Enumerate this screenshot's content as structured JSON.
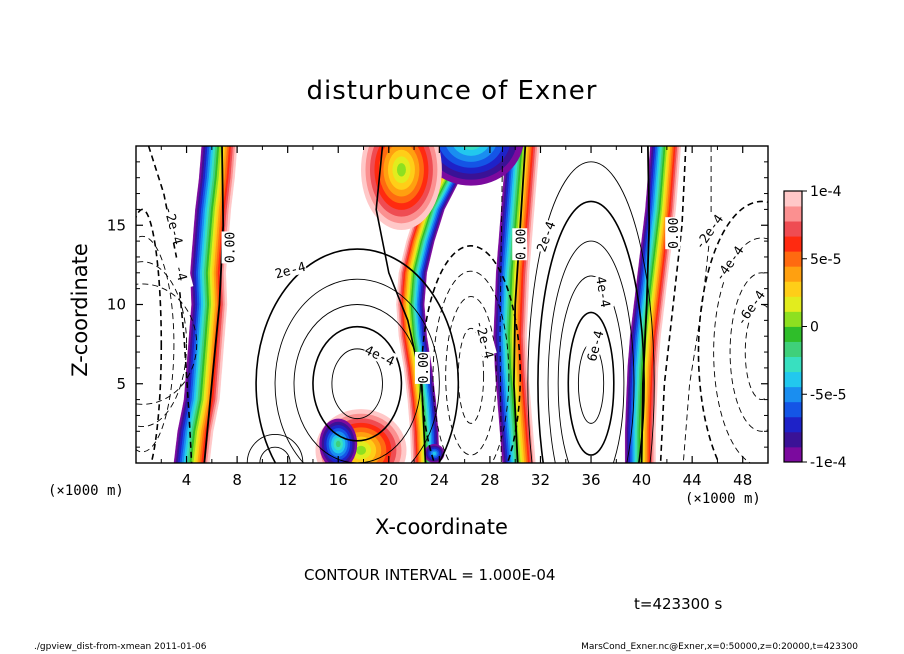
{
  "figure": {
    "title": "disturbunce of Exner",
    "contour_interval": "CONTOUR INTERVAL = 1.000E-04",
    "time_label": "t=423300 s",
    "footer_left": "./gpview_dist-from-xmean  2011-01-06",
    "footer_right": "MarsCond_Exner.nc@Exner,x=0:50000,z=0:20000,t=423300"
  },
  "chart_data": {
    "type": "heatmap",
    "title": "disturbunce of Exner",
    "xlabel": "X-coordinate",
    "ylabel": "Z-coordinate",
    "x_unit": "(×1000 m)",
    "y_unit": "(×1000 m)",
    "xlim": [
      0,
      50
    ],
    "ylim": [
      0,
      20
    ],
    "x_ticks": [
      4,
      8,
      12,
      16,
      20,
      24,
      28,
      32,
      36,
      40,
      44,
      48
    ],
    "y_ticks": [
      5,
      10,
      15
    ],
    "colorbar": {
      "range": [
        -0.0001,
        0.0001
      ],
      "tick_labels": [
        "1e-4",
        "5e-5",
        "0",
        "-5e-5",
        "-1e-4"
      ],
      "tick_values": [
        0.0001,
        5e-05,
        0,
        -5e-05,
        -0.0001
      ],
      "colors": [
        "#7b0a9e",
        "#3a1296",
        "#1e22c8",
        "#1455e6",
        "#1a8ef0",
        "#22c8ee",
        "#38e0c0",
        "#3fd07a",
        "#2fbe2a",
        "#8ee020",
        "#e2ec1e",
        "#ffce18",
        "#ffa010",
        "#ff6a10",
        "#ff2a10",
        "#ef4c52",
        "#fb9090",
        "#ffc8c8"
      ]
    },
    "shaded_bands": [
      {
        "name": "band-x5",
        "center": [
          [
            4.4,
            0
          ],
          [
            4.7,
            2
          ],
          [
            5.2,
            4
          ],
          [
            5.4,
            6
          ],
          [
            5.6,
            8
          ],
          [
            5.8,
            10
          ],
          [
            5.7,
            12
          ],
          [
            5.9,
            14
          ],
          [
            6.1,
            16
          ],
          [
            6.4,
            18
          ],
          [
            6.6,
            20
          ]
        ],
        "half_width": 1.4,
        "low_side": "left"
      },
      {
        "name": "band-x22",
        "center": [
          [
            22.9,
            0
          ],
          [
            22.8,
            2
          ],
          [
            22.6,
            4
          ],
          [
            22.3,
            6
          ],
          [
            21.9,
            8
          ],
          [
            21.7,
            10
          ],
          [
            21.9,
            12
          ],
          [
            22.5,
            14
          ],
          [
            23.3,
            16
          ],
          [
            24.6,
            18
          ],
          [
            26.5,
            20
          ]
        ],
        "half_width": 1.1,
        "low_side": "right"
      },
      {
        "name": "band-x30",
        "center": [
          [
            30.3,
            0
          ],
          [
            30.1,
            2
          ],
          [
            29.9,
            4
          ],
          [
            29.7,
            6
          ],
          [
            29.6,
            8
          ],
          [
            29.7,
            10
          ],
          [
            29.8,
            12
          ],
          [
            30,
            14
          ],
          [
            30.2,
            16
          ],
          [
            30.4,
            18
          ],
          [
            30.6,
            20
          ]
        ],
        "half_width": 1.3,
        "low_side": "left"
      },
      {
        "name": "band-x40",
        "center": [
          [
            39.9,
            0
          ],
          [
            39.9,
            2
          ],
          [
            40,
            4
          ],
          [
            40.1,
            6
          ],
          [
            40.3,
            8
          ],
          [
            40.6,
            10
          ],
          [
            40.9,
            12
          ],
          [
            41.2,
            14
          ],
          [
            41.5,
            16
          ],
          [
            41.7,
            18
          ],
          [
            41.9,
            20
          ]
        ],
        "half_width": 1.2,
        "low_side": "left"
      }
    ],
    "contour_labels": [
      {
        "text": "-2e-4",
        "x": 3.0,
        "z": 15.0,
        "angle": 75
      },
      {
        "text": "-4",
        "x": 3.6,
        "z": 12.0,
        "angle": 75
      },
      {
        "text": "0.00",
        "x": 7.4,
        "z": 13.6,
        "angle": -90
      },
      {
        "text": "2e-4",
        "x": 12.2,
        "z": 12.2,
        "angle": -15
      },
      {
        "text": "4e-4",
        "x": 19.3,
        "z": 6.8,
        "angle": 25
      },
      {
        "text": "0.00",
        "x": 22.7,
        "z": 6.0,
        "angle": -90
      },
      {
        "text": "-2e-4",
        "x": 27.6,
        "z": 7.8,
        "angle": 75
      },
      {
        "text": "0.00",
        "x": 30.4,
        "z": 13.8,
        "angle": -90
      },
      {
        "text": "2e-4",
        "x": 32.4,
        "z": 14.3,
        "angle": -70
      },
      {
        "text": "4e-4",
        "x": 37.0,
        "z": 10.8,
        "angle": 80
      },
      {
        "text": "6e-4",
        "x": 36.3,
        "z": 7.4,
        "angle": -75
      },
      {
        "text": "0.00",
        "x": 42.5,
        "z": 14.5,
        "angle": -90
      },
      {
        "text": "-2e-4",
        "x": 45.3,
        "z": 14.6,
        "angle": -55
      },
      {
        "text": "-4e-4",
        "x": 46.9,
        "z": 12.6,
        "angle": -55
      },
      {
        "text": "-6e-4",
        "x": 48.6,
        "z": 9.8,
        "angle": -55
      }
    ]
  }
}
